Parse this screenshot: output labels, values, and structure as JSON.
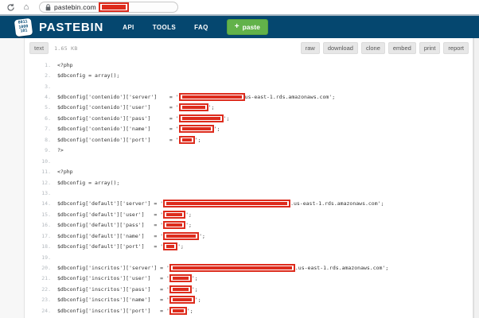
{
  "colors": {
    "header_bg": "#05476f",
    "paste_green": "#62b24a",
    "redaction_red": "#dd2b1c"
  },
  "browser": {
    "url": "pastebin.com",
    "reload_icon": "reload-icon",
    "home_icon": "home-icon",
    "home_glyph": "⌂",
    "lock_icon": "lock-icon",
    "url_redaction_width": 38
  },
  "header": {
    "brand": "PASTEBIN",
    "logo_rows": [
      "0011",
      "1000",
      "101"
    ],
    "nav": [
      "API",
      "TOOLS",
      "FAQ"
    ],
    "paste_plus": "+",
    "paste_label": "paste"
  },
  "toolbar": {
    "format_badge": "text",
    "size": "1.65 KB",
    "actions": [
      "raw",
      "download",
      "clone",
      "embed",
      "print",
      "report"
    ]
  },
  "code": {
    "lines": [
      {
        "num": "1.",
        "segs": [
          {
            "t": "<?php"
          }
        ]
      },
      {
        "num": "2.",
        "segs": [
          {
            "t": "$dbconfig = array();"
          }
        ]
      },
      {
        "num": "3.",
        "segs": []
      },
      {
        "num": "4.",
        "segs": [
          {
            "t": "$dbconfig['contenido']['server']    = '"
          },
          {
            "r": 83
          },
          {
            "t": "us-east-1.rds.amazonaws.com';"
          }
        ]
      },
      {
        "num": "5.",
        "segs": [
          {
            "t": "$dbconfig['contenido']['user']      = '"
          },
          {
            "r": 37
          },
          {
            "t": "';"
          }
        ]
      },
      {
        "num": "6.",
        "segs": [
          {
            "t": "$dbconfig['contenido']['pass']      = '"
          },
          {
            "r": 56
          },
          {
            "t": "';"
          }
        ]
      },
      {
        "num": "7.",
        "segs": [
          {
            "t": "$dbconfig['contenido']['name']      = '"
          },
          {
            "r": 44
          },
          {
            "t": "';"
          }
        ]
      },
      {
        "num": "8.",
        "segs": [
          {
            "t": "$dbconfig['contenido']['port']      = '"
          },
          {
            "r": 20
          },
          {
            "t": "';"
          }
        ]
      },
      {
        "num": "9.",
        "segs": [
          {
            "t": "?>"
          }
        ]
      },
      {
        "num": "10.",
        "segs": []
      },
      {
        "num": "11.",
        "segs": [
          {
            "t": "<?php"
          }
        ]
      },
      {
        "num": "12.",
        "segs": [
          {
            "t": "$dbconfig = array();"
          }
        ]
      },
      {
        "num": "13.",
        "segs": []
      },
      {
        "num": "14.",
        "segs": [
          {
            "t": "$dbconfig['default']['server'] = '"
          },
          {
            "r": 160
          },
          {
            "t": ".us-east-1.rds.amazonaws.com';"
          }
        ]
      },
      {
        "num": "15.",
        "segs": [
          {
            "t": "$dbconfig['default']['user']   = '"
          },
          {
            "r": 28
          },
          {
            "t": "';"
          }
        ]
      },
      {
        "num": "16.",
        "segs": [
          {
            "t": "$dbconfig['default']['pass']   = '"
          },
          {
            "r": 28
          },
          {
            "t": "';"
          }
        ]
      },
      {
        "num": "17.",
        "segs": [
          {
            "t": "$dbconfig['default']['name']   = '"
          },
          {
            "r": 45
          },
          {
            "t": "';"
          }
        ]
      },
      {
        "num": "18.",
        "segs": [
          {
            "t": "$dbconfig['default']['port']   = '"
          },
          {
            "r": 18
          },
          {
            "t": "';"
          }
        ]
      },
      {
        "num": "19.",
        "segs": []
      },
      {
        "num": "20.",
        "segs": [
          {
            "t": "$dbconfig['inscritos']['server'] = '"
          },
          {
            "r": 158
          },
          {
            "t": ".us-east-1.rds.amazonaws.com';"
          }
        ]
      },
      {
        "num": "21.",
        "segs": [
          {
            "t": "$dbconfig['inscritos']['user']   = '"
          },
          {
            "r": 28
          },
          {
            "t": "';"
          }
        ]
      },
      {
        "num": "22.",
        "segs": [
          {
            "t": "$dbconfig['inscritos']['pass']   = '"
          },
          {
            "r": 28
          },
          {
            "t": "';"
          }
        ]
      },
      {
        "num": "23.",
        "segs": [
          {
            "t": "$dbconfig['inscritos']['name']   = '"
          },
          {
            "r": 32
          },
          {
            "t": "';"
          }
        ]
      },
      {
        "num": "24.",
        "segs": [
          {
            "t": "$dbconfig['inscritos']['port']   = '"
          },
          {
            "r": 22
          },
          {
            "t": "';"
          }
        ]
      }
    ]
  }
}
